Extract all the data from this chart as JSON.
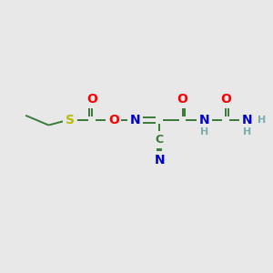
{
  "bg_color": "#e8e8e8",
  "bond_color": "#3a7a3a",
  "bond_width": 1.4,
  "atom_colors": {
    "O": "#ff0000",
    "N": "#0000cc",
    "S": "#bbbb00",
    "C": "#3a7a3a",
    "H": "#7aadad"
  },
  "font_size": 9.5,
  "fig_size": [
    3.0,
    3.0
  ],
  "dpi": 100,
  "xlim": [
    0,
    10
  ],
  "ylim": [
    0,
    10
  ]
}
